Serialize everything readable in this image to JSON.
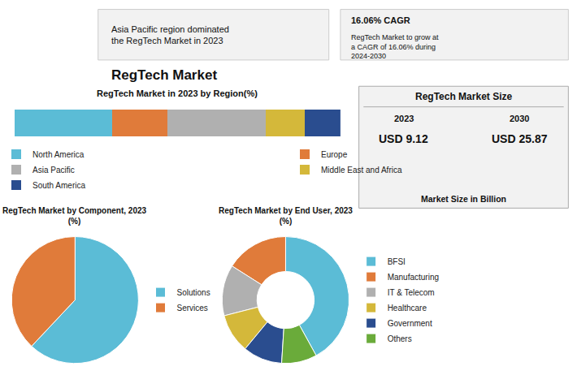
{
  "chart_data": [
    {
      "type": "bar",
      "title": "RegTech Market",
      "subtitle": "RegTech Market in 2023 by Region(%)",
      "orientation": "horizontal",
      "stacked": true,
      "categories": [
        null
      ],
      "series": [
        {
          "name": "North America",
          "color": "#5bbcd6",
          "values": [
            0.3
          ]
        },
        {
          "name": "Europe",
          "color": "#e07b3a",
          "values": [
            0.17
          ]
        },
        {
          "name": "Asia Pacific",
          "color": "#b0b0b0",
          "values": [
            0.3
          ]
        },
        {
          "name": "Middle East and Africa",
          "color": "#d4b83a",
          "values": [
            0.12
          ]
        },
        {
          "name": "South America",
          "color": "#2a4d8f",
          "values": [
            0.11
          ]
        }
      ],
      "xlim": [
        0,
        1
      ],
      "tick_labels": false,
      "grid": false,
      "legend": "bottom",
      "annotations": [
        "Asia Pacific region dominated\nthe RegTech Market in 2023",
        "16.06% CAGR",
        "RegTech Market to grow at\na CAGR of 16.06% during\n2024-2030",
        "RegTech Market Size",
        "2023",
        "2030",
        "USD 9.12",
        "USD 25.87",
        "Market Size in Billion"
      ]
    },
    {
      "type": "pie",
      "title": "RegTech Market by Component, 2023\n(%)",
      "categories": [
        "Solutions",
        "Services"
      ],
      "values": [
        62,
        38
      ],
      "colors": [
        "#5bbcd6",
        "#e07b3a"
      ],
      "legend": "right"
    },
    {
      "type": "donut",
      "title": "RegTech Market by End User, 2023\n(%)",
      "categories": [
        "BFSI",
        "Manufacturing",
        "IT & Telecom",
        "Healthcare",
        "Government",
        "Others"
      ],
      "values": [
        42,
        16,
        13,
        10,
        10,
        9
      ],
      "colors": [
        "#5bbcd6",
        "#e07b3a",
        "#b0b0b0",
        "#d4b83a",
        "#2a4d8f",
        "#6aab3a"
      ],
      "legend": "right"
    }
  ]
}
